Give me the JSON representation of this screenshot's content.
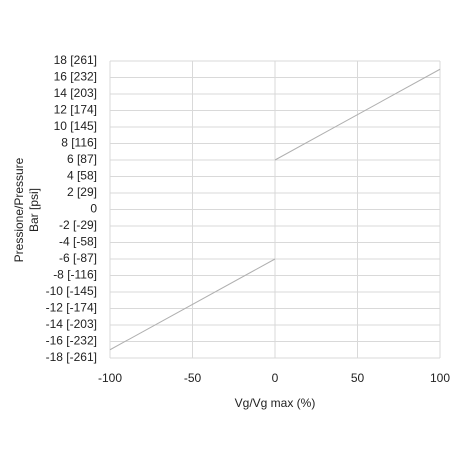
{
  "chart_data": {
    "type": "line",
    "ylabel": [
      "Pressione/Pressure",
      "Bar [psi]"
    ],
    "xlabel": "Vg/Vg max (%)",
    "x": [
      -100,
      0,
      0,
      0,
      100
    ],
    "values": [
      -17,
      -6,
      null,
      6,
      17
    ],
    "color": "#b0b0b0",
    "xlim": [
      -100,
      100
    ],
    "xticks": [
      -100,
      -50,
      0,
      50,
      100
    ],
    "ylim": [
      -18,
      18
    ],
    "yticks": [
      {
        "value": 18,
        "label": "18 [261]"
      },
      {
        "value": 16,
        "label": "16 [232]"
      },
      {
        "value": 14,
        "label": "14 [203]"
      },
      {
        "value": 12,
        "label": "12 [174]"
      },
      {
        "value": 10,
        "label": "10 [145]"
      },
      {
        "value": 8,
        "label": "8 [116]"
      },
      {
        "value": 6,
        "label": "6 [87]"
      },
      {
        "value": 4,
        "label": "4 [58]"
      },
      {
        "value": 2,
        "label": "2 [29]"
      },
      0,
      {
        "value": -2,
        "label": "-2 [-29]"
      },
      {
        "value": -4,
        "label": "-4 [-58]"
      },
      {
        "value": -6,
        "label": "-6 [-87]"
      },
      {
        "value": -8,
        "label": "-8 [-116]"
      },
      {
        "value": -10,
        "label": "-10 [-145]"
      },
      {
        "value": -12,
        "label": "-12 [-174]"
      },
      {
        "value": -14,
        "label": "-14 [-203]"
      },
      {
        "value": -16,
        "label": "-16 [-232]"
      },
      {
        "value": -18,
        "label": "-18 [-261]"
      }
    ],
    "grid": true
  }
}
